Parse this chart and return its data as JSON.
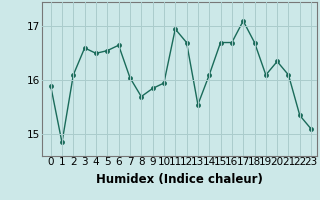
{
  "x": [
    0,
    1,
    2,
    3,
    4,
    5,
    6,
    7,
    8,
    9,
    10,
    11,
    12,
    13,
    14,
    15,
    16,
    17,
    18,
    19,
    20,
    21,
    22,
    23
  ],
  "y": [
    15.9,
    14.85,
    16.1,
    16.6,
    16.5,
    16.55,
    16.65,
    16.05,
    15.7,
    15.85,
    15.95,
    16.95,
    16.7,
    15.55,
    16.1,
    16.7,
    16.7,
    17.1,
    16.7,
    16.1,
    16.35,
    16.1,
    15.35,
    15.1
  ],
  "line_color": "#1a6b5a",
  "marker": "o",
  "marker_size": 2.5,
  "bg_color": "#cce8e8",
  "grid_color": "#aacccc",
  "xlabel": "Humidex (Indice chaleur)",
  "ylim": [
    14.6,
    17.45
  ],
  "yticks": [
    15,
    16,
    17
  ],
  "xticks": [
    0,
    1,
    2,
    3,
    4,
    5,
    6,
    7,
    8,
    9,
    10,
    11,
    12,
    13,
    14,
    15,
    16,
    17,
    18,
    19,
    20,
    21,
    22,
    23
  ],
  "xlabel_fontsize": 8.5,
  "tick_fontsize": 7.5,
  "line_width": 1.0
}
